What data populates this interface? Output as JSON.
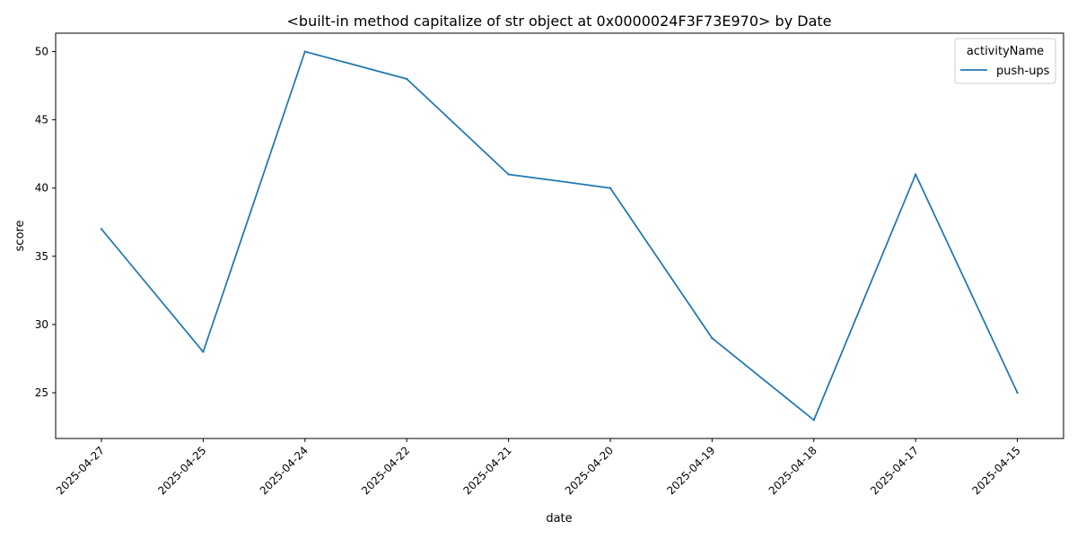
{
  "chart_data": {
    "type": "line",
    "title": "<built-in method capitalize of str object at 0x0000024F3F73E970> by Date",
    "xlabel": "date",
    "ylabel": "score",
    "categories": [
      "2025-04-27",
      "2025-04-25",
      "2025-04-24",
      "2025-04-22",
      "2025-04-21",
      "2025-04-20",
      "2025-04-19",
      "2025-04-18",
      "2025-04-17",
      "2025-04-15"
    ],
    "series": [
      {
        "name": "push-ups",
        "color": "#1f77b4",
        "values": [
          37,
          28,
          50,
          48,
          41,
          40,
          29,
          23,
          41,
          25
        ]
      }
    ],
    "ylim": [
      21.65,
      51.35
    ],
    "yticks": [
      25,
      30,
      35,
      40,
      45,
      50
    ],
    "grid": false,
    "legend": {
      "title": "activityName",
      "position": "top-right"
    }
  }
}
